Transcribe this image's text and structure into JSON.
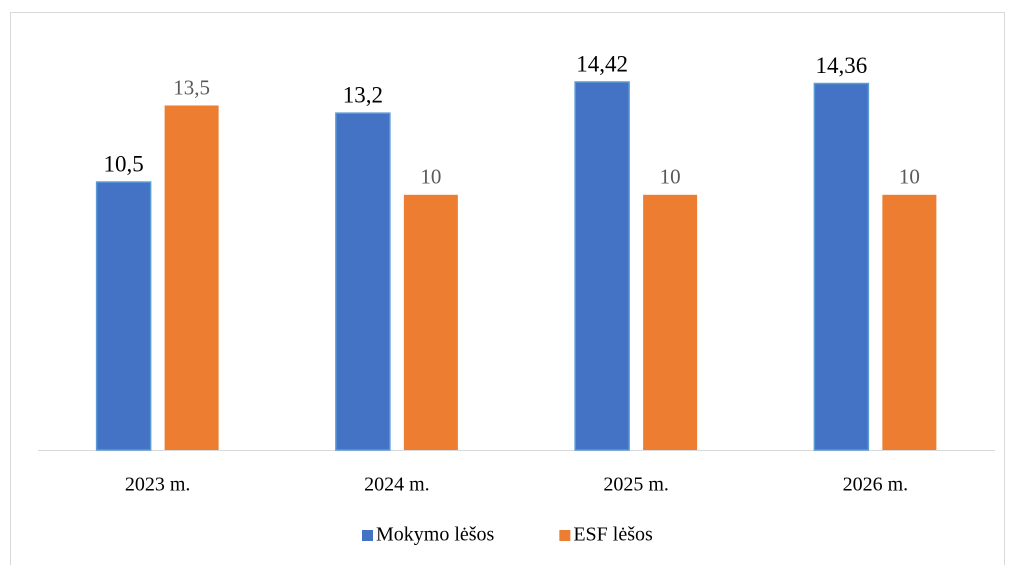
{
  "chart_data": {
    "type": "bar",
    "categories": [
      "2023 m.",
      "2024 m.",
      "2025 m.",
      "2026 m."
    ],
    "series": [
      {
        "name": "Mokymo lėšos",
        "color": "#4472c4",
        "values": [
          10.5,
          13.2,
          14.42,
          14.36
        ],
        "value_labels": [
          "10,5",
          "13,2",
          "14,42",
          "14,36"
        ]
      },
      {
        "name": "ESF lėšos",
        "color": "#ed7d31",
        "values": [
          13.5,
          10,
          10,
          10
        ],
        "value_labels": [
          "13,5",
          "10",
          "10",
          "10"
        ]
      }
    ],
    "legend": "bottom",
    "grid": false
  }
}
